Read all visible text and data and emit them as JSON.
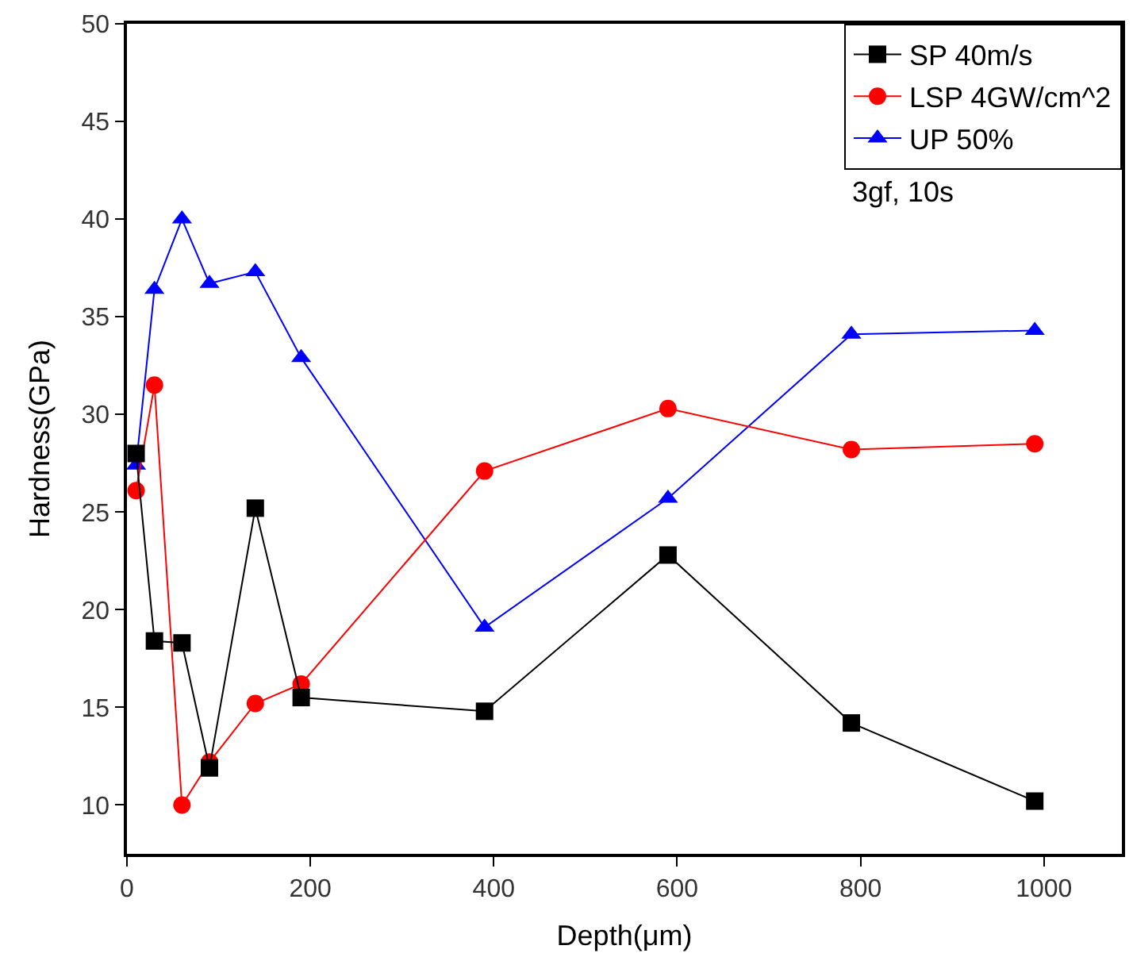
{
  "chart_data": {
    "type": "line",
    "xlabel": "Depth(μm)",
    "ylabel": "Hardness(GPa)",
    "x": [
      10,
      30,
      60,
      90,
      140,
      190,
      390,
      590,
      790,
      990
    ],
    "series": [
      {
        "name": "SP 40m/s",
        "color": "#000000",
        "marker": "square",
        "values": [
          28,
          18.4,
          18.3,
          11.9,
          25.2,
          15.5,
          14.8,
          22.8,
          14.2,
          10.2
        ]
      },
      {
        "name": "LSP 4GW/cm^2",
        "color": "#ff0000",
        "marker": "circle",
        "values": [
          26.1,
          31.5,
          10.0,
          12.2,
          15.2,
          16.2,
          27.1,
          30.3,
          28.2,
          28.5
        ]
      },
      {
        "name": "UP 50%",
        "color": "#0000ff",
        "marker": "triangle",
        "values": [
          27.4,
          36.4,
          40.0,
          36.7,
          37.3,
          32.9,
          19.1,
          25.7,
          34.1,
          34.3
        ]
      }
    ],
    "annotations": [
      "3gf, 10s"
    ],
    "xlim": [
      0,
      1085
    ],
    "xticks": [
      0,
      200,
      400,
      600,
      800,
      1000
    ],
    "ylim": [
      7.5,
      50
    ],
    "yticks": [
      10,
      15,
      20,
      25,
      30,
      35,
      40,
      45,
      50
    ],
    "legend": "top right",
    "line_style": "solid"
  }
}
